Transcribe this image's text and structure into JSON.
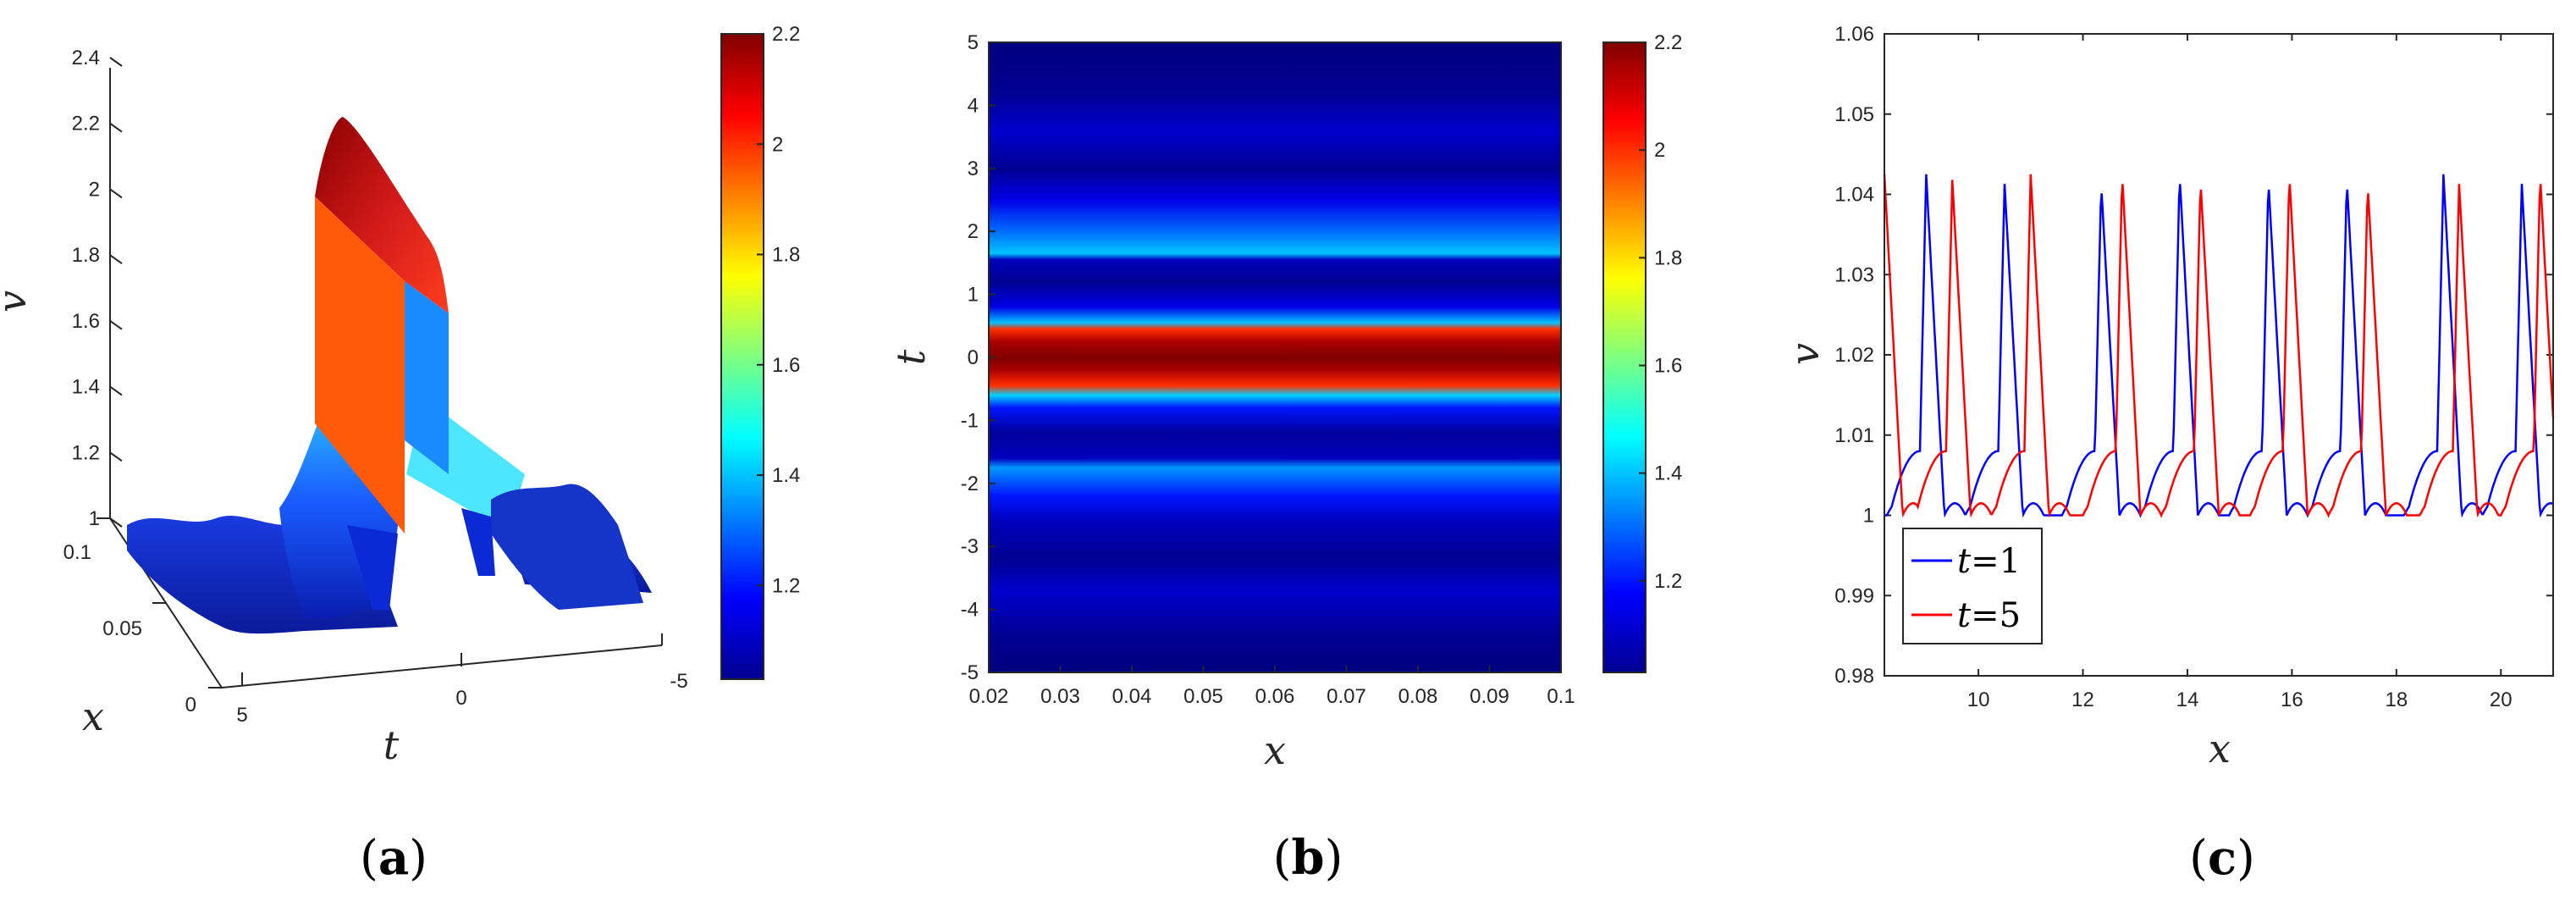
{
  "chart_data": [
    {
      "id": "a",
      "type": "surface",
      "caption_letter": "a",
      "xlabel": "x",
      "ylabel": "t",
      "zlabel": "v",
      "zlim": [
        1,
        2.4
      ],
      "zticks": [
        "1",
        "1.2",
        "1.4",
        "1.6",
        "1.8",
        "2",
        "2.2",
        "2.4"
      ],
      "xticks": [
        "0",
        "0.05",
        "0.1"
      ],
      "tticks": [
        "5",
        "0",
        "-5"
      ],
      "colorbar": {
        "min": 1.03,
        "max": 2.2,
        "ticks": [
          "1.2",
          "1.4",
          "1.6",
          "1.8",
          "2",
          "2.2"
        ]
      }
    },
    {
      "id": "b",
      "type": "heatmap",
      "caption_letter": "b",
      "xlabel": "x",
      "ylabel": "t",
      "xlim": [
        0.02,
        0.1
      ],
      "ylim": [
        -5,
        5
      ],
      "xticks": [
        "0.02",
        "0.03",
        "0.04",
        "0.05",
        "0.06",
        "0.07",
        "0.08",
        "0.09",
        "0.1"
      ],
      "yticks": [
        "5",
        "4",
        "3",
        "2",
        "1",
        "0",
        "-1",
        "-2",
        "-3",
        "-4",
        "-5"
      ],
      "profile": [
        {
          "t": -5.0,
          "v": 1.03
        },
        {
          "t": -4.4,
          "v": 1.05
        },
        {
          "t": -3.7,
          "v": 1.12
        },
        {
          "t": -3.2,
          "v": 1.05
        },
        {
          "t": -2.6,
          "v": 1.1
        },
        {
          "t": -2.2,
          "v": 1.2
        },
        {
          "t": -1.75,
          "v": 1.35
        },
        {
          "t": -1.6,
          "v": 1.1
        },
        {
          "t": -1.2,
          "v": 1.06
        },
        {
          "t": -0.8,
          "v": 1.2
        },
        {
          "t": -0.6,
          "v": 1.42
        },
        {
          "t": -0.45,
          "v": 2.0
        },
        {
          "t": -0.2,
          "v": 2.15
        },
        {
          "t": 0.0,
          "v": 2.2
        },
        {
          "t": 0.25,
          "v": 2.15
        },
        {
          "t": 0.45,
          "v": 2.0
        },
        {
          "t": 0.55,
          "v": 1.4
        },
        {
          "t": 0.8,
          "v": 1.15
        },
        {
          "t": 1.2,
          "v": 1.05
        },
        {
          "t": 1.55,
          "v": 1.1
        },
        {
          "t": 1.65,
          "v": 1.4
        },
        {
          "t": 2.0,
          "v": 1.3
        },
        {
          "t": 2.5,
          "v": 1.15
        },
        {
          "t": 3.0,
          "v": 1.05
        },
        {
          "t": 3.6,
          "v": 1.12
        },
        {
          "t": 4.2,
          "v": 1.05
        },
        {
          "t": 5.0,
          "v": 1.03
        }
      ],
      "colorbar": {
        "min": 1.03,
        "max": 2.2,
        "ticks": [
          "1.2",
          "1.4",
          "1.6",
          "1.8",
          "2",
          "2.2"
        ]
      }
    },
    {
      "id": "c",
      "type": "line",
      "caption_letter": "c",
      "xlabel": "x",
      "ylabel": "v",
      "xlim": [
        8.2,
        21.0
      ],
      "ylim": [
        0.98,
        1.06
      ],
      "xticks": [
        "10",
        "12",
        "14",
        "16",
        "18",
        "20"
      ],
      "yticks": [
        "1.06",
        "1.05",
        "1.04",
        "1.03",
        "1.02",
        "1.01",
        "1",
        "0.99",
        "0.98"
      ],
      "series": [
        {
          "name_var": "t",
          "name_rest": "=1",
          "color": "#0000ff",
          "peaks": [
            9.0,
            10.5,
            12.35,
            13.85,
            15.55,
            17.05,
            18.9,
            20.4
          ],
          "peak_heights": [
            1.0425,
            1.0413,
            1.0413,
            1.0425,
            1.0418,
            1.0418,
            1.0425,
            1.0413
          ]
        },
        {
          "name_var": "t",
          "name_rest": "=5",
          "color": "#ff0000",
          "peaks": [
            8.2,
            9.5,
            11.0,
            12.75,
            14.25,
            15.95,
            17.45,
            19.2,
            20.75
          ],
          "peak_heights": [
            1.0425,
            1.0418,
            1.0425,
            1.0425,
            1.0418,
            1.0425,
            1.0413,
            1.0413,
            1.0425
          ]
        }
      ]
    }
  ]
}
